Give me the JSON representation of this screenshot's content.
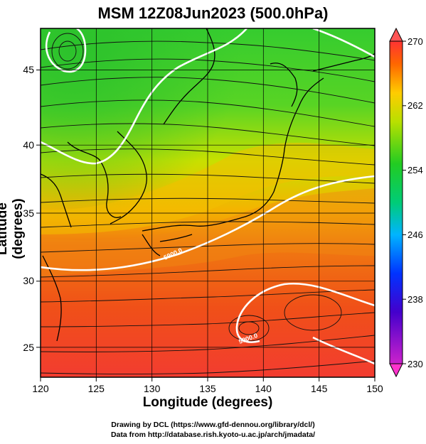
{
  "title": "MSM 12Z08Jun2023 (500.0hPa)",
  "map": {
    "xlabel": "Longitude (degrees)",
    "ylabel": "Latitude  (degrees)",
    "lon_range": [
      120,
      150
    ],
    "lat_range": [
      22.4,
      47.6
    ],
    "lon_ticks": [
      "120",
      "125",
      "130",
      "135",
      "140",
      "145",
      "150"
    ],
    "lat_ticks": [
      "25",
      "30",
      "35",
      "40",
      "45"
    ],
    "contour_labels": [
      "5900.0",
      "5900.0"
    ],
    "colors": {
      "cold": "#39d030",
      "mid": "#f5e000",
      "warm": "#f05a10",
      "hot": "#f03c2a",
      "contour": "#ffffff"
    }
  },
  "colorbar": {
    "ticks": [
      "270",
      "262",
      "254",
      "246",
      "238",
      "230"
    ],
    "range": [
      230,
      270
    ],
    "colors": [
      "#cc00cc",
      "#0000cc",
      "#00b4ff",
      "#00cc66",
      "#22cc22",
      "#ccee00",
      "#ffcc00",
      "#ff6600",
      "#ff3333"
    ]
  },
  "footer": {
    "line1": "Drawing by DCL (https://www.gfd-dennou.org/library/dcl/)",
    "line2": "Data from http://database.rish.kyoto-u.ac.jp/arch/jmadata/"
  }
}
